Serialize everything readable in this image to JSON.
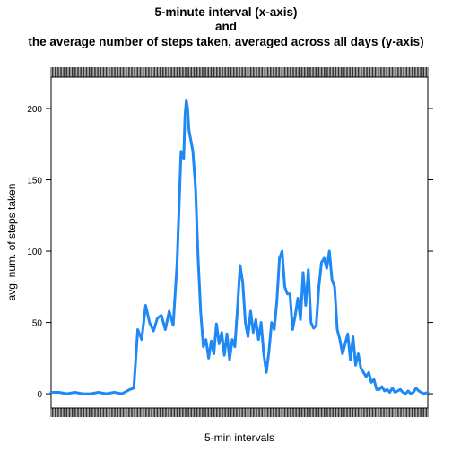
{
  "chart_data": {
    "type": "line",
    "title_lines": [
      "5-minute interval (x-axis)",
      "and",
      "the average number of steps taken, averaged across all days (y-axis)"
    ],
    "xlabel": "5-min intervals",
    "ylabel": "avg. num. of steps taken",
    "xlim": [
      0,
      287
    ],
    "ylim": [
      -10,
      222
    ],
    "yticks": [
      0,
      50,
      100,
      150,
      200
    ],
    "line_color": "#1e88f5",
    "grid": false,
    "series": [
      {
        "x": [
          0,
          6,
          12,
          18,
          24,
          30,
          36,
          42,
          48,
          54,
          60,
          63,
          66,
          69,
          72,
          75,
          78,
          81,
          84,
          87,
          90,
          93,
          96,
          99,
          101,
          102,
          103,
          104,
          105,
          106,
          108,
          110,
          112,
          114,
          116,
          118,
          120,
          122,
          124,
          126,
          128,
          130,
          132,
          134,
          136,
          138,
          140,
          142,
          144,
          146,
          148,
          150,
          152,
          154,
          156,
          158,
          160,
          162,
          164,
          166,
          168,
          170,
          172,
          174,
          176,
          178,
          180,
          182,
          184,
          186,
          188,
          190,
          192,
          194,
          196,
          198,
          200,
          202,
          204,
          206,
          208,
          210,
          212,
          214,
          216,
          218,
          220,
          222,
          224,
          226,
          228,
          230,
          232,
          234,
          236,
          238,
          240,
          242,
          244,
          246,
          248,
          250,
          252,
          254,
          256,
          258,
          260,
          262,
          264,
          266,
          268,
          270,
          272,
          274,
          276,
          278,
          280,
          282,
          284,
          287
        ],
        "y": [
          1,
          1,
          0,
          1,
          0,
          0,
          1,
          0,
          1,
          0,
          3,
          4,
          45,
          38,
          62,
          50,
          44,
          53,
          55,
          45,
          58,
          48,
          92,
          170,
          165,
          195,
          206,
          200,
          185,
          180,
          170,
          145,
          95,
          57,
          33,
          38,
          25,
          37,
          28,
          49,
          35,
          43,
          27,
          42,
          24,
          38,
          33,
          60,
          90,
          78,
          50,
          40,
          58,
          43,
          52,
          38,
          50,
          28,
          15,
          30,
          50,
          45,
          65,
          95,
          100,
          75,
          70,
          70,
          45,
          55,
          67,
          52,
          85,
          62,
          87,
          50,
          46,
          48,
          75,
          92,
          95,
          88,
          100,
          80,
          75,
          45,
          38,
          28,
          35,
          42,
          24,
          40,
          20,
          28,
          18,
          15,
          12,
          15,
          8,
          10,
          3,
          3,
          5,
          2,
          3,
          1,
          4,
          1,
          2,
          3,
          1,
          0,
          2,
          0,
          1,
          4,
          2,
          1,
          0,
          1
        ]
      }
    ]
  }
}
